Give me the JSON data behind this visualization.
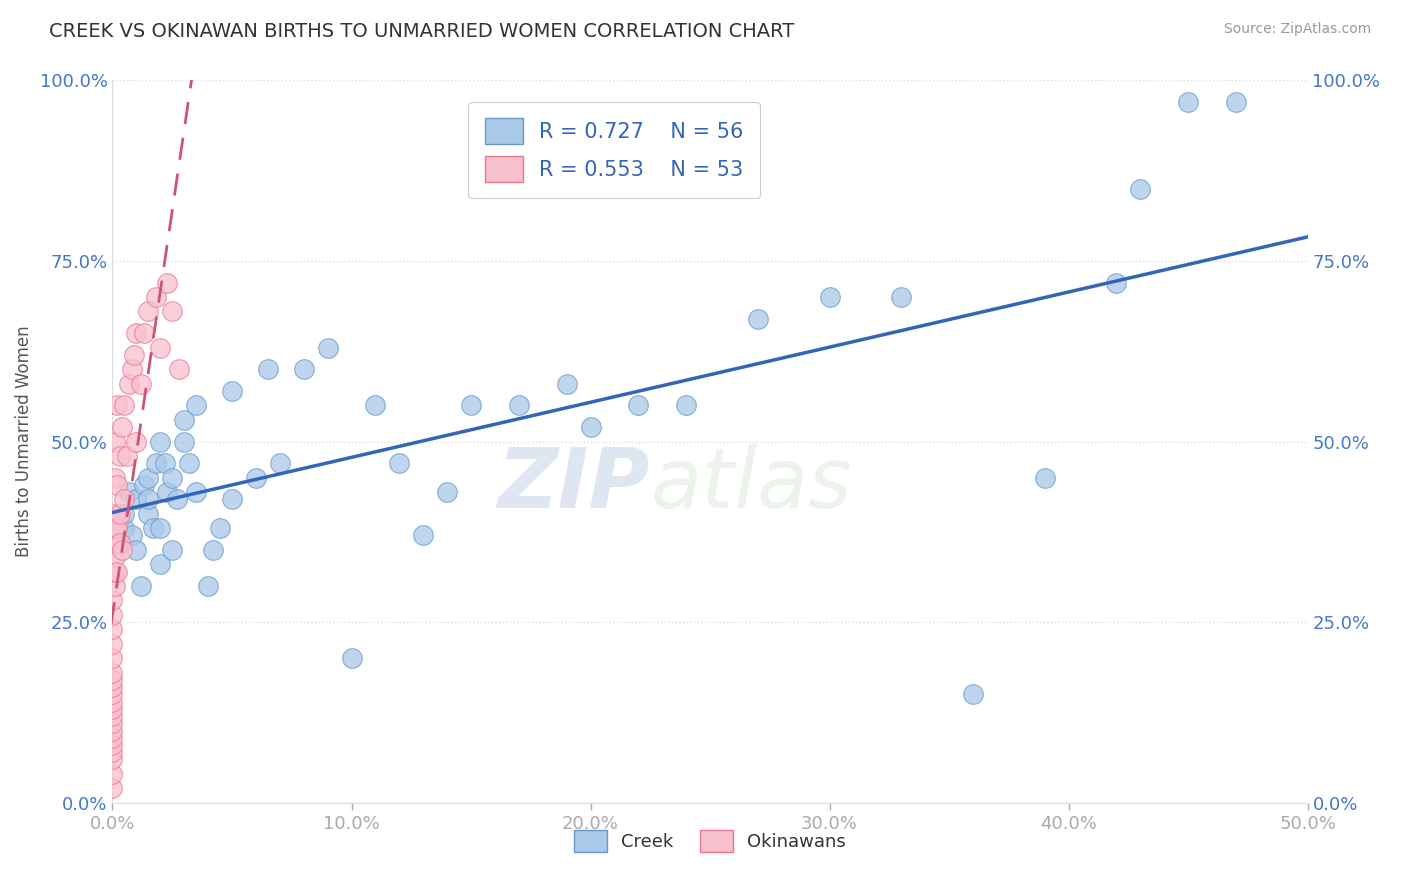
{
  "title": "CREEK VS OKINAWAN BIRTHS TO UNMARRIED WOMEN CORRELATION CHART",
  "source": "Source: ZipAtlas.com",
  "ylabel": "Births to Unmarried Women",
  "xlim": [
    0.0,
    0.5
  ],
  "ylim": [
    0.0,
    1.0
  ],
  "xticks": [
    0.0,
    0.1,
    0.2,
    0.3,
    0.4,
    0.5
  ],
  "yticks": [
    0.0,
    0.25,
    0.5,
    0.75,
    1.0
  ],
  "xticklabels": [
    "0.0%",
    "10.0%",
    "20.0%",
    "30.0%",
    "40.0%",
    "50.0%"
  ],
  "yticklabels": [
    "0.0%",
    "25.0%",
    "50.0%",
    "75.0%",
    "100.0%"
  ],
  "creek_R": 0.727,
  "creek_N": 56,
  "okinawan_R": 0.553,
  "okinawan_N": 53,
  "blue_scatter_color": "#aac8e8",
  "blue_edge_color": "#6699cc",
  "pink_scatter_color": "#f9c0ce",
  "pink_edge_color": "#e87890",
  "blue_line_color": "#3366bb",
  "pink_line_color": "#cc5577",
  "legend_label_creek": "Creek",
  "legend_label_okinawan": "Okinawans",
  "creek_x": [
    0.005,
    0.005,
    0.007,
    0.008,
    0.01,
    0.01,
    0.012,
    0.013,
    0.015,
    0.015,
    0.015,
    0.017,
    0.018,
    0.02,
    0.02,
    0.02,
    0.022,
    0.023,
    0.025,
    0.025,
    0.027,
    0.03,
    0.03,
    0.032,
    0.035,
    0.035,
    0.04,
    0.042,
    0.045,
    0.05,
    0.05,
    0.06,
    0.065,
    0.07,
    0.08,
    0.09,
    0.1,
    0.11,
    0.12,
    0.13,
    0.14,
    0.15,
    0.17,
    0.19,
    0.2,
    0.22,
    0.24,
    0.27,
    0.3,
    0.33,
    0.36,
    0.39,
    0.42,
    0.43,
    0.45,
    0.47
  ],
  "creek_y": [
    0.38,
    0.4,
    0.43,
    0.37,
    0.35,
    0.42,
    0.3,
    0.44,
    0.4,
    0.42,
    0.45,
    0.38,
    0.47,
    0.33,
    0.38,
    0.5,
    0.47,
    0.43,
    0.35,
    0.45,
    0.42,
    0.5,
    0.53,
    0.47,
    0.43,
    0.55,
    0.3,
    0.35,
    0.38,
    0.42,
    0.57,
    0.45,
    0.6,
    0.47,
    0.6,
    0.63,
    0.2,
    0.55,
    0.47,
    0.37,
    0.43,
    0.55,
    0.55,
    0.58,
    0.52,
    0.55,
    0.55,
    0.67,
    0.7,
    0.7,
    0.15,
    0.45,
    0.72,
    0.85,
    0.97,
    0.97
  ],
  "okinawan_x": [
    0.0,
    0.0,
    0.0,
    0.0,
    0.0,
    0.0,
    0.0,
    0.0,
    0.0,
    0.0,
    0.0,
    0.0,
    0.0,
    0.0,
    0.0,
    0.0,
    0.0,
    0.0,
    0.0,
    0.0,
    0.001,
    0.001,
    0.001,
    0.001,
    0.001,
    0.001,
    0.001,
    0.001,
    0.002,
    0.002,
    0.002,
    0.002,
    0.003,
    0.003,
    0.003,
    0.004,
    0.004,
    0.005,
    0.005,
    0.006,
    0.007,
    0.008,
    0.009,
    0.01,
    0.01,
    0.012,
    0.013,
    0.015,
    0.018,
    0.02,
    0.023,
    0.025,
    0.028
  ],
  "okinawan_y": [
    0.02,
    0.04,
    0.06,
    0.07,
    0.08,
    0.09,
    0.1,
    0.11,
    0.12,
    0.13,
    0.14,
    0.15,
    0.16,
    0.17,
    0.18,
    0.2,
    0.22,
    0.24,
    0.26,
    0.28,
    0.3,
    0.32,
    0.34,
    0.36,
    0.38,
    0.4,
    0.45,
    0.5,
    0.32,
    0.38,
    0.44,
    0.55,
    0.36,
    0.4,
    0.48,
    0.35,
    0.52,
    0.42,
    0.55,
    0.48,
    0.58,
    0.6,
    0.62,
    0.5,
    0.65,
    0.58,
    0.65,
    0.68,
    0.7,
    0.63,
    0.72,
    0.68,
    0.6
  ],
  "watermark_zip": "ZIP",
  "watermark_atlas": "atlas",
  "background_color": "#ffffff",
  "grid_color": "#dddddd"
}
